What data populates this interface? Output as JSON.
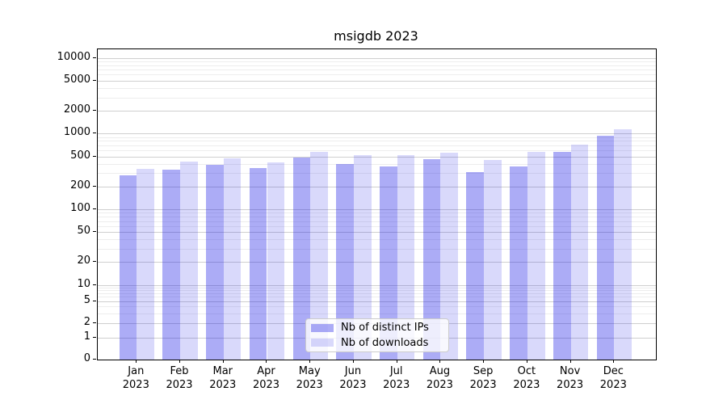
{
  "title": "msigdb 2023",
  "colors": {
    "series": [
      "rgba(25,25,230,0.36)",
      "rgba(25,25,230,0.165)"
    ],
    "grid_major": "#cfcfcf",
    "grid_minor": "#ededed",
    "axis": "#000000",
    "legend_border": "#cccccc"
  },
  "chart_data": {
    "type": "bar",
    "title": "msigdb 2023",
    "categories": [
      "Jan 2023",
      "Feb 2023",
      "Mar 2023",
      "Apr 2023",
      "May 2023",
      "Jun 2023",
      "Jul 2023",
      "Aug 2023",
      "Sep 2023",
      "Oct 2023",
      "Nov 2023",
      "Dec 2023"
    ],
    "series": [
      {
        "name": "Nb of distinct IPs",
        "values": [
          278,
          330,
          385,
          350,
          485,
          400,
          365,
          460,
          312,
          370,
          570,
          935
        ]
      },
      {
        "name": "Nb of downloads",
        "values": [
          345,
          425,
          470,
          415,
          580,
          520,
          515,
          560,
          445,
          580,
          710,
          1150
        ]
      }
    ],
    "xlabel": "",
    "ylabel": "",
    "yscale": "symlog",
    "ylim": [
      0,
      13000
    ],
    "yticks": [
      0,
      1,
      2,
      5,
      10,
      20,
      50,
      100,
      200,
      500,
      1000,
      2000,
      5000,
      10000
    ],
    "minor_gridlines": [
      3,
      4,
      6,
      7,
      8,
      9,
      30,
      40,
      60,
      70,
      80,
      90,
      300,
      400,
      600,
      700,
      800,
      900,
      3000,
      4000,
      6000,
      7000,
      8000,
      9000
    ],
    "grid": true,
    "legend_position": "lower center"
  }
}
